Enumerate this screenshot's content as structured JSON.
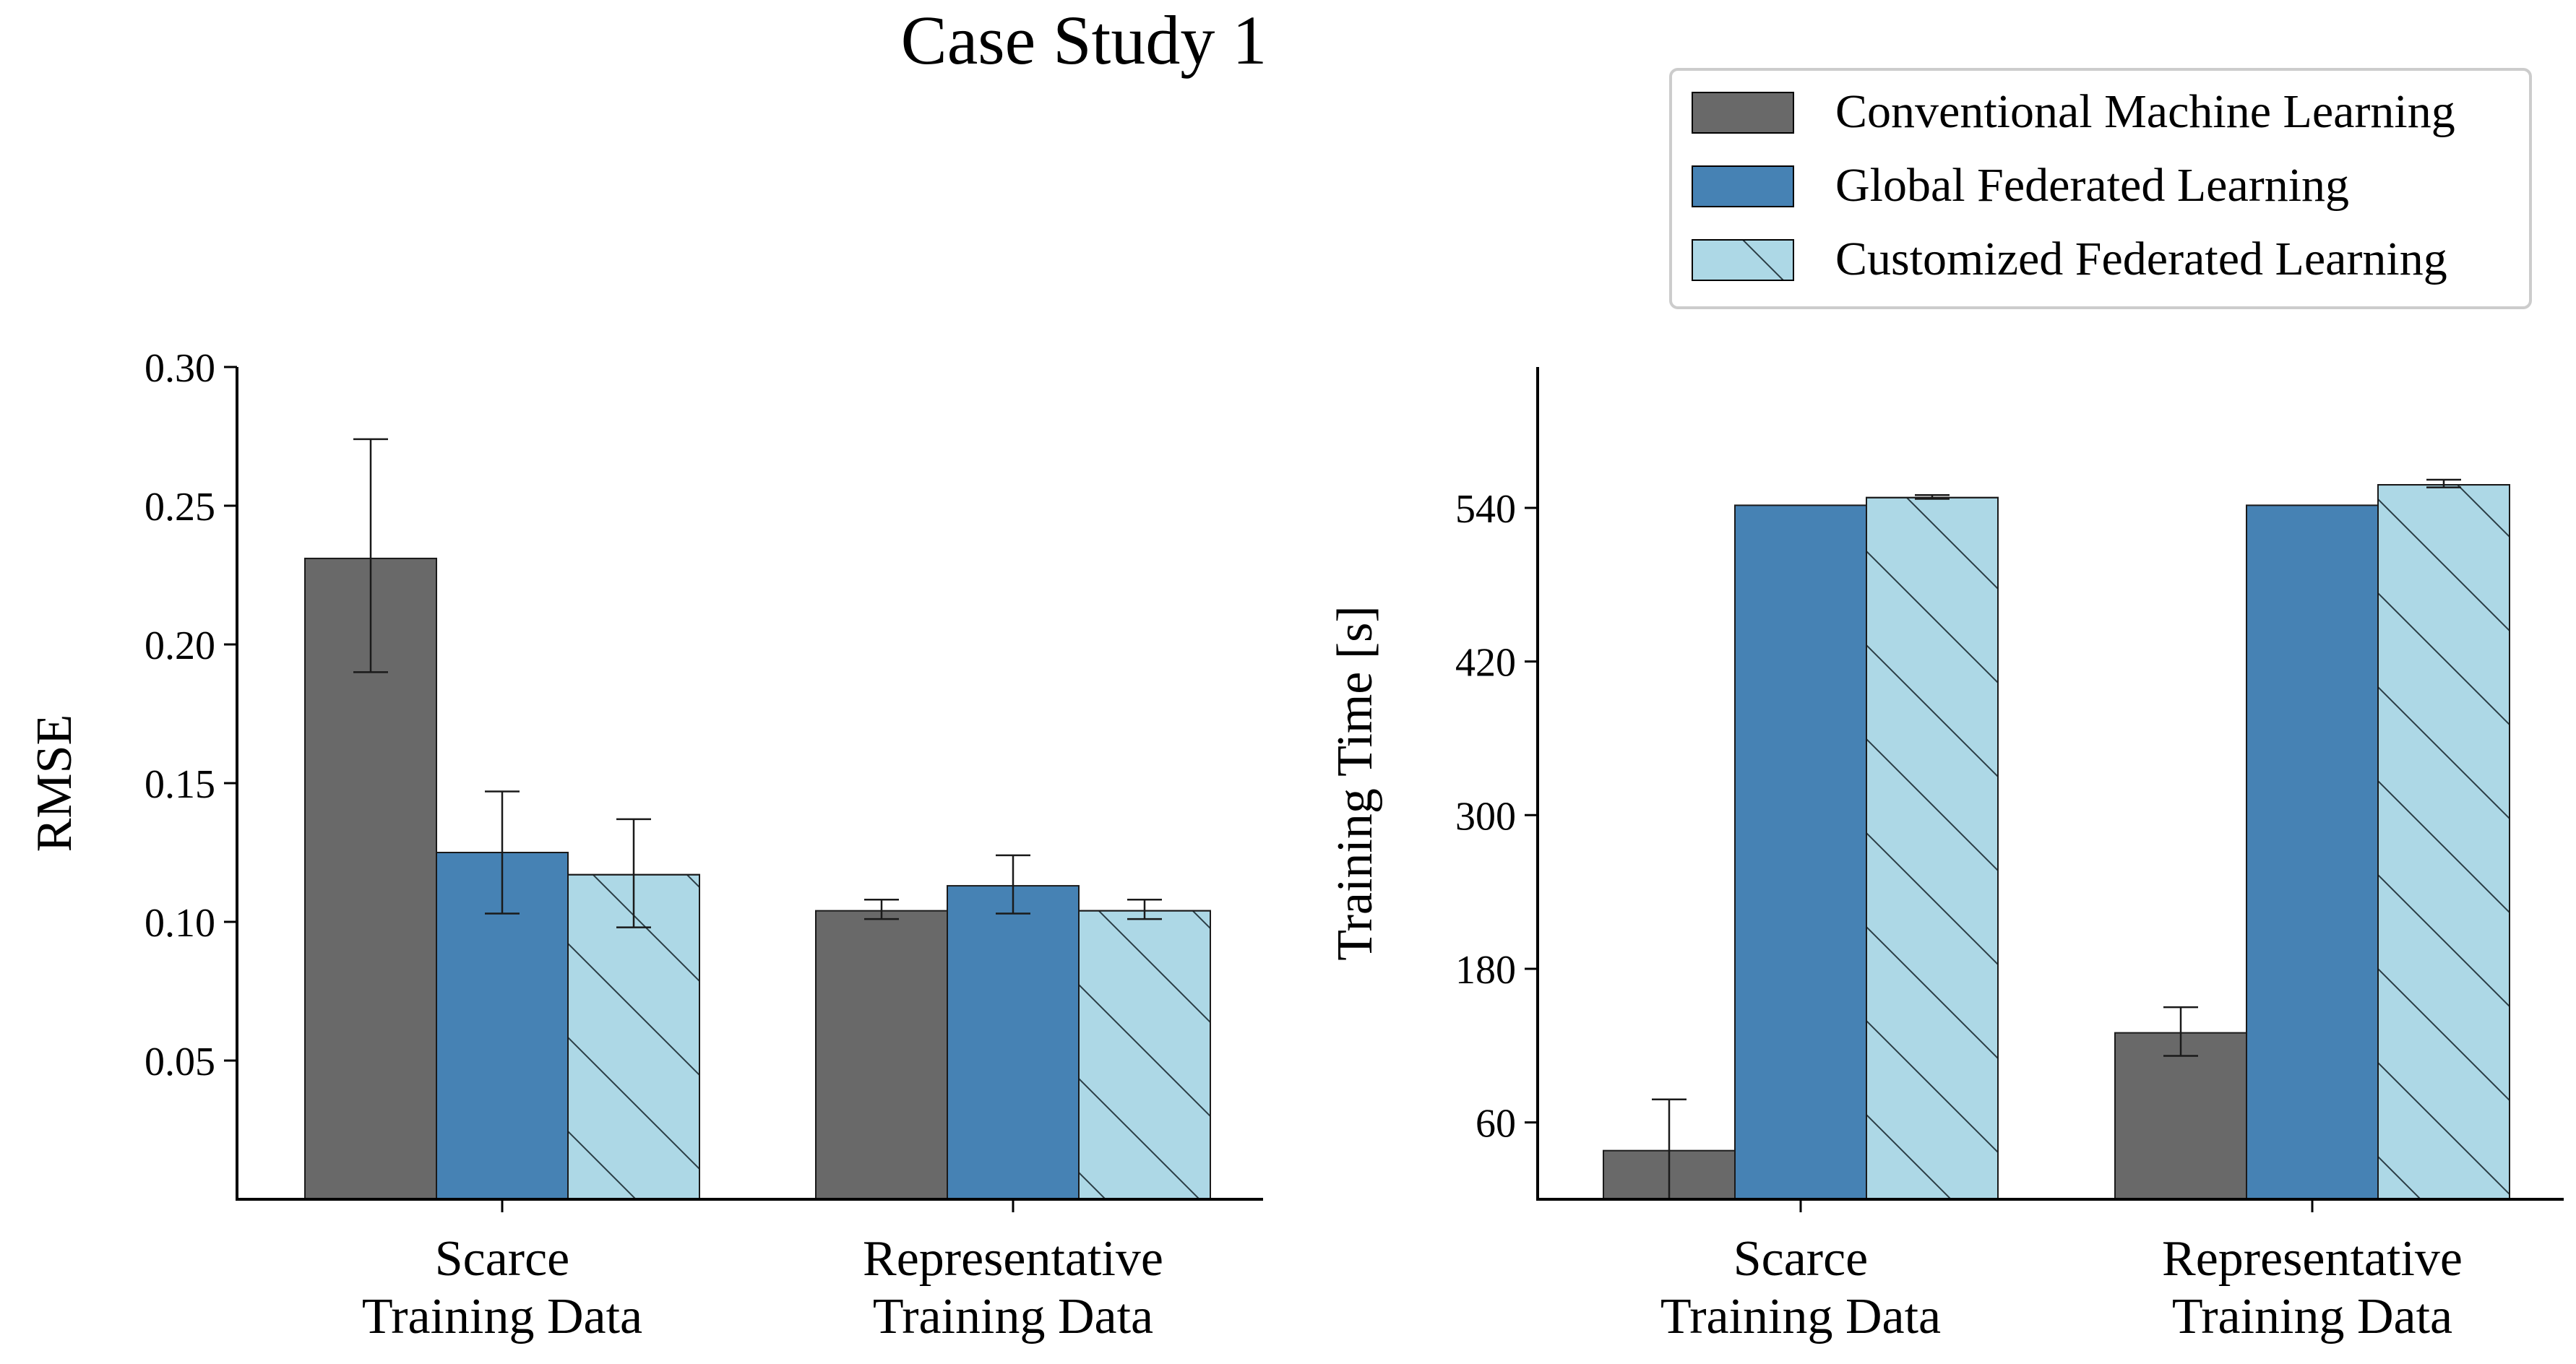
{
  "figure_title": "Case Study 1",
  "legend": [
    {
      "label": "Conventional Machine Learning",
      "color": "#696969",
      "hatch": false
    },
    {
      "label": "Global Federated Learning",
      "color": "#4682b4",
      "hatch": false
    },
    {
      "label": "Customized Federated Learning",
      "color": "#add8e6",
      "hatch": true
    }
  ],
  "chart_data": [
    {
      "type": "bar",
      "title": "",
      "xlabel": "",
      "ylabel": "RMSE",
      "categories": [
        [
          "Scarce",
          "Training Data"
        ],
        [
          "Representative",
          "Training Data"
        ]
      ],
      "ylim": [
        0,
        0.3
      ],
      "yticks": [
        0.05,
        0.1,
        0.15,
        0.2,
        0.25,
        0.3
      ],
      "ytick_labels": [
        "0.05",
        "0.10",
        "0.15",
        "0.20",
        "0.25",
        "0.30"
      ],
      "series": [
        {
          "name": "Conventional Machine Learning",
          "values": [
            0.231,
            0.104
          ],
          "err_low": [
            0.19,
            0.101
          ],
          "err_high": [
            0.274,
            0.108
          ]
        },
        {
          "name": "Global Federated Learning",
          "values": [
            0.125,
            0.113
          ],
          "err_low": [
            0.103,
            0.103
          ],
          "err_high": [
            0.147,
            0.124
          ]
        },
        {
          "name": "Customized Federated Learning",
          "values": [
            0.117,
            0.104
          ],
          "err_low": [
            0.098,
            0.101
          ],
          "err_high": [
            0.137,
            0.108
          ]
        }
      ]
    },
    {
      "type": "bar",
      "title": "",
      "xlabel": "",
      "ylabel": "Training Time [s]",
      "categories": [
        [
          "Scarce",
          "Training Data"
        ],
        [
          "Representative",
          "Training Data"
        ]
      ],
      "ylim": [
        0,
        650
      ],
      "yticks": [
        60,
        180,
        300,
        420,
        540
      ],
      "ytick_labels": [
        "60",
        "180",
        "300",
        "420",
        "540"
      ],
      "series": [
        {
          "name": "Conventional Machine Learning",
          "values": [
            38,
            130
          ],
          "err_low": [
            0,
            112
          ],
          "err_high": [
            78,
            150
          ]
        },
        {
          "name": "Global Federated Learning",
          "values": [
            542,
            542
          ],
          "err_low": [
            542,
            542
          ],
          "err_high": [
            542,
            542
          ]
        },
        {
          "name": "Customized Federated Learning",
          "values": [
            548,
            558
          ],
          "err_low": [
            547,
            556
          ],
          "err_high": [
            550,
            562
          ]
        }
      ]
    }
  ]
}
